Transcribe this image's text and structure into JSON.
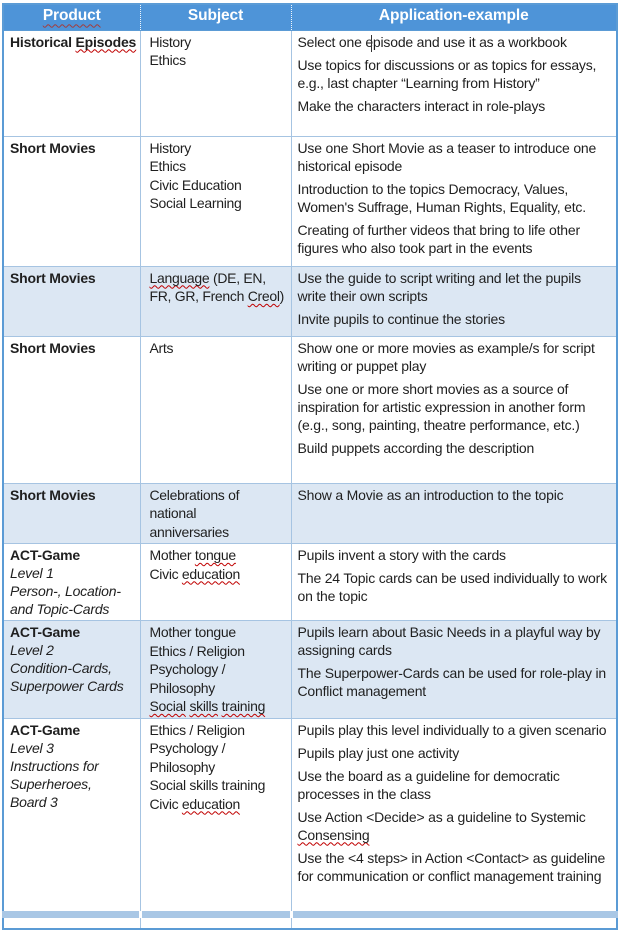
{
  "header": {
    "columns": [
      {
        "label": "Product",
        "misspelled": true
      },
      {
        "label": "Subject",
        "misspelled": false
      },
      {
        "label": "Application-example",
        "misspelled": false
      }
    ]
  },
  "rows": [
    {
      "shaded": false,
      "product": [
        [
          {
            "t": "Historical ",
            "b": 1
          },
          {
            "t": "Episodes",
            "b": 1,
            "sp": 1
          }
        ]
      ],
      "subject": [
        [
          {
            "t": "History"
          }
        ],
        [
          {
            "t": "Ethics"
          }
        ]
      ],
      "application": [
        [
          {
            "t": "Select one episode and use it as a workbook"
          }
        ],
        [
          {
            "t": "Use topics for discussions or as topics for essays, e.g., last chapter “Learning from History”"
          }
        ],
        [
          {
            "t": "Make the characters interact in role-plays"
          }
        ]
      ]
    },
    {
      "shaded": false,
      "product": [
        [
          {
            "t": "Short Movies",
            "b": 1
          }
        ]
      ],
      "subject": [
        [
          {
            "t": "History"
          }
        ],
        [
          {
            "t": "Ethics"
          }
        ],
        [
          {
            "t": "Civic Education"
          }
        ],
        [
          {
            "t": "Social Learning"
          }
        ]
      ],
      "application": [
        [
          {
            "t": "Use one Short Movie as a teaser to introduce one historical episode"
          }
        ],
        [
          {
            "t": "Introduction to the topics Democracy, Values, Women's Suffrage, Human Rights, Equality, etc."
          }
        ],
        [
          {
            "t": "Creating of further videos that bring to life other figures who also took part in the events"
          }
        ]
      ]
    },
    {
      "shaded": true,
      "product": [
        [
          {
            "t": "Short Movies",
            "b": 1
          }
        ]
      ],
      "subject": [
        [
          {
            "t": "Language",
            "sp": 1
          },
          {
            "t": " (DE, EN,"
          }
        ],
        [
          {
            "t": "FR, GR, French "
          },
          {
            "t": "Creol",
            "sp": 1
          },
          {
            "t": ")"
          }
        ]
      ],
      "application": [
        [
          {
            "t": "Use the guide to script writing and let the pupils write their own scripts"
          }
        ],
        [
          {
            "t": "Invite pupils to continue the stories"
          }
        ]
      ]
    },
    {
      "shaded": false,
      "product": [
        [
          {
            "t": "Short Movies",
            "b": 1
          }
        ]
      ],
      "subject": [
        [
          {
            "t": "Arts"
          }
        ]
      ],
      "application": [
        [
          {
            "t": "Show one or more movies as example/s for script writing or puppet play"
          }
        ],
        [
          {
            "t": "Use one or more short movies as a source of inspiration for artistic expression in another form (e.g., song, painting, theatre performance, etc.)"
          }
        ],
        [
          {
            "t": "Build puppets according the description"
          }
        ]
      ]
    },
    {
      "shaded": true,
      "product": [
        [
          {
            "t": "Short Movies",
            "b": 1
          }
        ]
      ],
      "subject": [
        [
          {
            "t": "Celebrations of"
          }
        ],
        [
          {
            "t": "national"
          }
        ],
        [
          {
            "t": "anniversaries"
          }
        ]
      ],
      "application": [
        [
          {
            "t": "Show a Movie as an introduction to the topic"
          }
        ]
      ]
    },
    {
      "shaded": false,
      "product": [
        [
          {
            "t": "ACT-Game",
            "b": 1
          }
        ],
        [
          {
            "t": "Level 1",
            "i": 1
          }
        ],
        [
          {
            "t": "Person-, Location-",
            "i": 1
          }
        ],
        [
          {
            "t": "and Topic-Cards",
            "i": 1
          }
        ]
      ],
      "subject": [
        [
          {
            "t": "Mother "
          },
          {
            "t": "tongue",
            "sp": 1
          }
        ],
        [
          {
            "t": "Civic "
          },
          {
            "t": "education",
            "sp": 1
          }
        ]
      ],
      "application": [
        [
          {
            "t": "Pupils invent a story with the cards"
          }
        ],
        [
          {
            "t": "The 24 Topic cards can be used individually to work on the topic"
          }
        ]
      ]
    },
    {
      "shaded": true,
      "product": [
        [
          {
            "t": "ACT-Game",
            "b": 1
          }
        ],
        [
          {
            "t": "Level 2",
            "i": 1
          }
        ],
        [
          {
            "t": "Condition-Cards,",
            "i": 1
          }
        ],
        [
          {
            "t": "Superpower Cards",
            "i": 1
          }
        ]
      ],
      "subject": [
        [
          {
            "t": "Mother tongue"
          }
        ],
        [
          {
            "t": "Ethics / Religion"
          }
        ],
        [
          {
            "t": "Psychology /"
          }
        ],
        [
          {
            "t": "Philosophy"
          }
        ],
        [
          {
            "t": "Social",
            "sp": 1
          },
          {
            "t": " "
          },
          {
            "t": "skills",
            "sp": 1
          },
          {
            "t": " "
          },
          {
            "t": "training",
            "sp": 1
          }
        ]
      ],
      "application": [
        [
          {
            "t": "Pupils learn about Basic Needs in a playful way by assigning cards"
          }
        ],
        [
          {
            "t": "The Superpower-Cards can be used for role-play in Conflict management"
          }
        ]
      ]
    },
    {
      "shaded": false,
      "product": [
        [
          {
            "t": "ACT-Game",
            "b": 1
          }
        ],
        [
          {
            "t": "Level 3",
            "i": 1
          }
        ],
        [
          {
            "t": "Instructions for",
            "i": 1
          }
        ],
        [
          {
            "t": "Superheroes,",
            "i": 1
          }
        ],
        [
          {
            "t": "Board 3",
            "i": 1
          }
        ]
      ],
      "subject": [
        [
          {
            "t": "Ethics / Religion"
          }
        ],
        [
          {
            "t": "Psychology /"
          }
        ],
        [
          {
            "t": "Philosophy"
          }
        ],
        [
          {
            "t": "Social skills training"
          }
        ],
        [
          {
            "t": "Civic "
          },
          {
            "t": "education",
            "sp": 1
          }
        ]
      ],
      "application": [
        [
          {
            "t": "Pupils play this level individually to a given scenario"
          }
        ],
        [
          {
            "t": "Pupils play just one activity"
          }
        ],
        [
          {
            "t": "Use the board as a guideline for democratic processes in the class"
          }
        ],
        [
          {
            "t": "Use Action <Decide> as a guideline to Systemic "
          },
          {
            "t": "Consensing",
            "sp": 1
          }
        ],
        [
          {
            "t": "Use the <4 steps> in Action <Contact> as guideline for communication or conflict management training"
          }
        ]
      ]
    }
  ],
  "colors": {
    "header-bg": "#4e94d8",
    "header-text": "#ffffff",
    "outer-border": "#5b9bd5",
    "inner-border": "#a6c4e2",
    "row-shade": "#dce7f3",
    "spell-red": "#c00000",
    "header-spell": "#a33c3c",
    "text": "#1f1f1f",
    "sliver": "#a9c7e5"
  }
}
